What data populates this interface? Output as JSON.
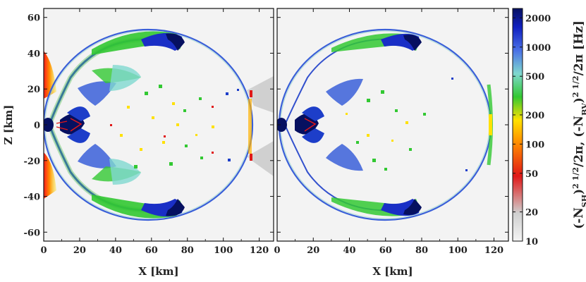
{
  "chart_data": [
    {
      "type": "heatmap",
      "panel": "left",
      "title": "",
      "xlabel": "X [km]",
      "ylabel": "Z [km]",
      "xlim": [
        0,
        128
      ],
      "ylim": [
        -65,
        65
      ],
      "xticks": [
        0,
        20,
        40,
        60,
        80,
        100,
        120
      ],
      "yticks": [
        60,
        40,
        20,
        0,
        -20,
        -40,
        -60
      ],
      "structures": [
        {
          "name": "outer-shock-arc",
          "center": [
            62,
            0
          ],
          "rx": 58,
          "rz": 55,
          "value_hz": 1000
        },
        {
          "name": "upper-lobe-arc",
          "x": [
            20,
            75
          ],
          "z": [
            38,
            55
          ],
          "value_hz": 1200
        },
        {
          "name": "lower-lobe-arc",
          "x": [
            20,
            75
          ],
          "z": [
            -55,
            -38
          ],
          "value_hz": 1200
        },
        {
          "name": "core-turbulence",
          "center": [
            15,
            0
          ],
          "value_hz": 2000
        },
        {
          "name": "polar-jet-upper",
          "x": [
            0,
            6
          ],
          "z": [
            15,
            45
          ],
          "value_hz": 60
        },
        {
          "name": "polar-jet-lower",
          "x": [
            0,
            6
          ],
          "z": [
            -50,
            -15
          ],
          "value_hz": 60
        }
      ]
    },
    {
      "type": "heatmap",
      "panel": "right",
      "title": "",
      "xlabel": "X [km]",
      "ylabel": "",
      "xlim": [
        0,
        128
      ],
      "ylim": [
        -65,
        65
      ],
      "xticks": [
        0,
        20,
        40,
        60,
        80,
        100,
        120
      ],
      "yticks": [],
      "structures": [
        {
          "name": "outer-shock-arc",
          "center": [
            62,
            0
          ],
          "rx": 58,
          "rz": 55,
          "value_hz": 800
        },
        {
          "name": "upper-lobe-arc",
          "x": [
            25,
            78
          ],
          "z": [
            40,
            56
          ],
          "value_hz": 1500
        },
        {
          "name": "lower-lobe-arc",
          "x": [
            25,
            78
          ],
          "z": [
            -56,
            -40
          ],
          "value_hz": 1500
        },
        {
          "name": "core-turbulence",
          "center": [
            15,
            0
          ],
          "value_hz": 2000
        }
      ]
    }
  ],
  "colorbar": {
    "label": "(-N_SH^2)^1/2/2π, (-N_BV^2)^1/2/2π [Hz]",
    "label_text": {
      "open": "(-N",
      "sub1": "SH",
      "mid": ")",
      "sup1": "2 1/2",
      "slash1": "/2π,  (-N",
      "sub2": "BV",
      "sup2": "2 1/2",
      "slash2": "/2π  [Hz]"
    },
    "scale": "log",
    "range": [
      10,
      2500
    ],
    "ticks": [
      2000,
      1000,
      500,
      200,
      100,
      50,
      20,
      10
    ],
    "tick_labels": [
      "2000",
      "1000",
      "500",
      "200",
      "100",
      "50",
      "20",
      "10"
    ],
    "colors": [
      "#f4f4f4",
      "#cfcfcf",
      "#e01818",
      "#ff8a00",
      "#ffe100",
      "#32c832",
      "#7fd8cf",
      "#4a70e6",
      "#1020c0",
      "#061060"
    ]
  }
}
